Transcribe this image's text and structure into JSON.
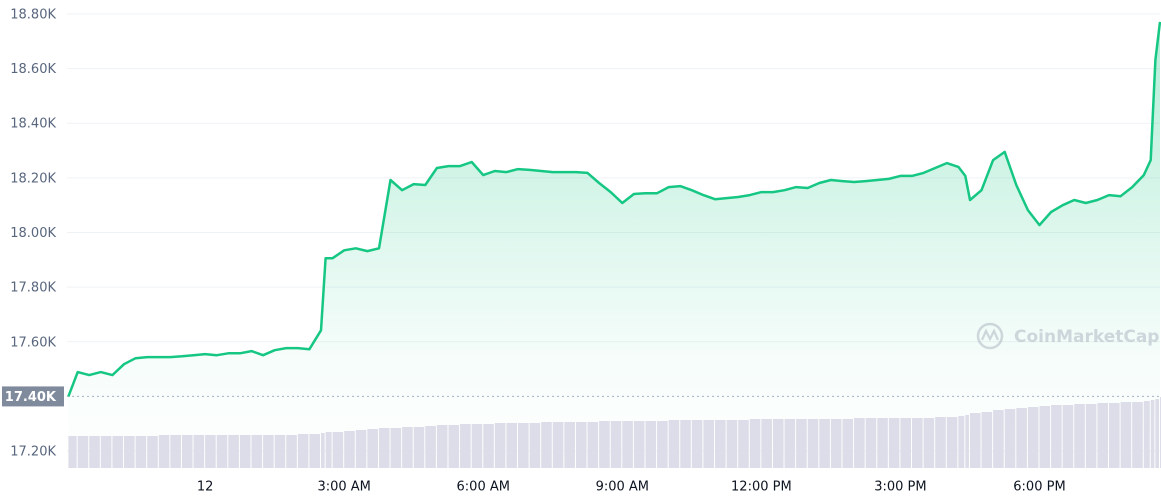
{
  "chart_data": {
    "type": "line",
    "watermark": "CoinMarketCap",
    "color": "#16c784",
    "x": [
      -2.95,
      -2.75,
      -2.5,
      -2.25,
      -2,
      -1.75,
      -1.5,
      -1.25,
      -1,
      -0.75,
      -0.5,
      -0.25,
      0,
      0.25,
      0.5,
      0.75,
      1,
      1.25,
      1.5,
      1.75,
      2,
      2.25,
      2.5,
      2.6,
      2.75,
      3,
      3.25,
      3.5,
      3.75,
      4,
      4.25,
      4.5,
      4.75,
      5,
      5.25,
      5.5,
      5.75,
      6,
      6.25,
      6.5,
      6.75,
      7,
      7.25,
      7.5,
      7.75,
      8,
      8.25,
      8.5,
      8.75,
      9,
      9.25,
      9.5,
      9.75,
      10,
      10.25,
      10.5,
      10.75,
      11,
      11.25,
      11.5,
      11.75,
      12,
      12.25,
      12.5,
      12.75,
      13,
      13.25,
      13.5,
      13.75,
      14,
      14.25,
      14.5,
      14.75,
      15,
      15.25,
      15.5,
      15.75,
      16,
      16.25,
      16.4,
      16.5,
      16.75,
      17,
      17.25,
      17.5,
      17.75,
      18,
      18.25,
      18.5,
      18.75,
      19,
      19.25,
      19.5,
      19.75,
      20,
      20.25,
      20.4,
      20.5,
      20.6
    ],
    "values": [
      17400,
      17489,
      17478,
      17489,
      17478,
      17518,
      17540,
      17544,
      17544,
      17544,
      17547,
      17551,
      17555,
      17551,
      17558,
      17558,
      17566,
      17551,
      17569,
      17577,
      17577,
      17573,
      17642,
      17906,
      17906,
      17935,
      17942,
      17932,
      17942,
      18192,
      18155,
      18177,
      18174,
      18236,
      18243,
      18243,
      18258,
      18210,
      18225,
      18221,
      18232,
      18229,
      18225,
      18221,
      18221,
      18221,
      18218,
      18181,
      18148,
      18108,
      18141,
      18144,
      18144,
      18166,
      18170,
      18155,
      18137,
      18122,
      18126,
      18130,
      18137,
      18148,
      18148,
      18155,
      18166,
      18163,
      18181,
      18192,
      18188,
      18185,
      18188,
      18192,
      18196,
      18207,
      18207,
      18218,
      18236,
      18254,
      18240,
      18207,
      18119,
      18155,
      18265,
      18295,
      18174,
      18082,
      18027,
      18075,
      18100,
      18119,
      18108,
      18119,
      18137,
      18133,
      18166,
      18210,
      18265,
      18632,
      18771
    ],
    "volume": {
      "color": "#dcdde8",
      "lim": [
        0,
        100
      ],
      "values": [
        32,
        32,
        32,
        32,
        32,
        32,
        32,
        32,
        33,
        33,
        33,
        33,
        33,
        33,
        33,
        33,
        33,
        33,
        33,
        33,
        34,
        34,
        35,
        36,
        36,
        37,
        38,
        39,
        40,
        40,
        41,
        41,
        42,
        43,
        43,
        44,
        44,
        44,
        45,
        45,
        45,
        45,
        46,
        46,
        46,
        46,
        46,
        47,
        47,
        47,
        47,
        47,
        47,
        48,
        48,
        48,
        48,
        48,
        48,
        48,
        49,
        49,
        49,
        49,
        49,
        49,
        49,
        49,
        49,
        50,
        50,
        50,
        50,
        50,
        50,
        50,
        51,
        51,
        52,
        53,
        55,
        56,
        58,
        59,
        60,
        61,
        62,
        63,
        63,
        64,
        64,
        65,
        65,
        66,
        66,
        67,
        68,
        69,
        71
      ]
    },
    "baseline": 17400,
    "xlim": [
      -2.98,
      20.6
    ],
    "ylim": [
      17138,
      18851
    ],
    "xticks": [
      {
        "value": 0,
        "label": "12"
      },
      {
        "value": 3,
        "label": "3:00 AM"
      },
      {
        "value": 6,
        "label": "6:00 AM"
      },
      {
        "value": 9,
        "label": "9:00 AM"
      },
      {
        "value": 12,
        "label": "12:00 PM"
      },
      {
        "value": 15,
        "label": "3:00 PM"
      },
      {
        "value": 18,
        "label": "6:00 PM"
      }
    ],
    "yticks": [
      {
        "value": 17200,
        "label": "17.20K"
      },
      {
        "value": 17400,
        "label": "17.40K"
      },
      {
        "value": 17600,
        "label": "17.60K"
      },
      {
        "value": 17800,
        "label": "17.80K"
      },
      {
        "value": 18000,
        "label": "18.00K"
      },
      {
        "value": 18200,
        "label": "18.20K"
      },
      {
        "value": 18400,
        "label": "18.40K"
      },
      {
        "value": 18600,
        "label": "18.60K"
      },
      {
        "value": 18800,
        "label": "18.80K"
      }
    ],
    "grid": true
  }
}
